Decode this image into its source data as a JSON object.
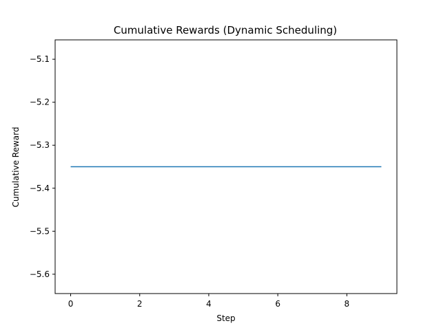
{
  "chart_data": {
    "type": "line",
    "title": "Cumulative Rewards (Dynamic Scheduling)",
    "xlabel": "Step",
    "ylabel": "Cumulative Reward",
    "xlim": [
      -0.45,
      9.45
    ],
    "ylim": [
      -5.645,
      -5.055
    ],
    "xticks": [
      0,
      2,
      4,
      6,
      8
    ],
    "yticks": [
      -5.6,
      -5.5,
      -5.4,
      -5.3,
      -5.2,
      -5.1
    ],
    "xtick_labels": [
      "0",
      "2",
      "4",
      "6",
      "8"
    ],
    "ytick_labels": [
      "−5.6",
      "−5.5",
      "−5.4",
      "−5.3",
      "−5.2",
      "−5.1"
    ],
    "grid": false,
    "series": [
      {
        "color": "#1f77b4",
        "x": [
          0,
          1,
          2,
          3,
          4,
          5,
          6,
          7,
          8,
          9
        ],
        "y": [
          -5.35,
          -5.35,
          -5.35,
          -5.35,
          -5.35,
          -5.35,
          -5.35,
          -5.35,
          -5.35,
          -5.35
        ]
      }
    ]
  }
}
